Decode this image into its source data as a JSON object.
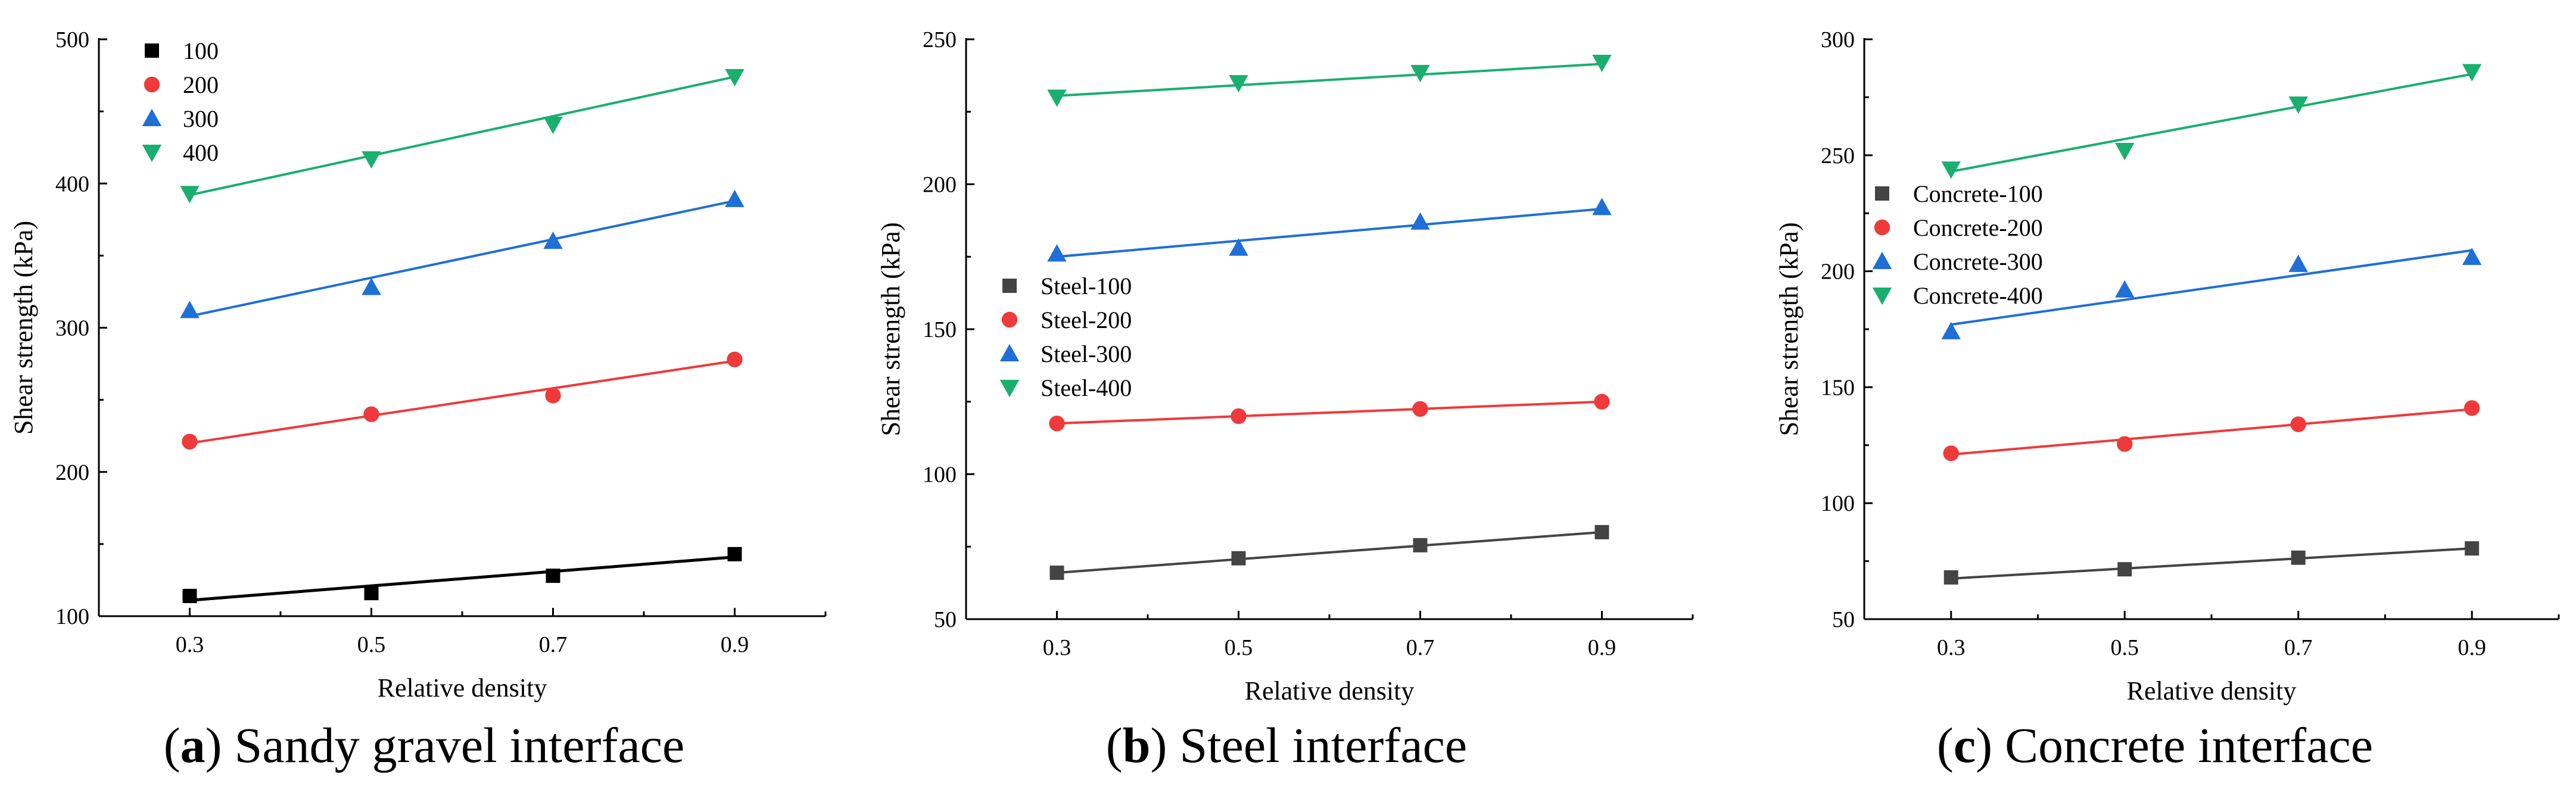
{
  "chart_data": [
    {
      "type": "scatter",
      "caption_letter": "a",
      "caption_text": "Sandy gravel interface",
      "xlabel": "Relative density",
      "ylabel": "Shear strength (kPa)",
      "x": [
        0.3,
        0.5,
        0.7,
        0.9
      ],
      "xticks": [
        "0.3",
        "0.5",
        "0.7",
        "0.9"
      ],
      "xlim": [
        0.2,
        1.0
      ],
      "ylim": [
        100,
        500
      ],
      "yticks": [
        "100",
        "200",
        "300",
        "400",
        "500"
      ],
      "legend_position": "top-left",
      "series": [
        {
          "name": "100",
          "color": "#000000",
          "marker": "square",
          "values": [
            114,
            116,
            128,
            143
          ],
          "fit": [
            111,
            141
          ]
        },
        {
          "name": "200",
          "color": "#ee3a3a",
          "marker": "circle",
          "values": [
            221,
            240,
            253,
            278
          ],
          "fit": [
            220,
            277
          ]
        },
        {
          "name": "300",
          "color": "#1f6fd6",
          "marker": "triangle-up",
          "values": [
            312,
            328,
            360,
            389
          ],
          "fit": [
            308,
            388
          ]
        },
        {
          "name": "400",
          "color": "#1aaf6e",
          "marker": "triangle-down",
          "values": [
            393,
            417,
            441,
            474
          ],
          "fit": [
            392,
            474
          ]
        }
      ]
    },
    {
      "type": "scatter",
      "caption_letter": "b",
      "caption_text": "Steel interface",
      "xlabel": "Relative density",
      "ylabel": "Shear strength (kPa)",
      "x": [
        0.3,
        0.5,
        0.7,
        0.9
      ],
      "xticks": [
        "0.3",
        "0.5",
        "0.7",
        "0.9"
      ],
      "xlim": [
        0.2,
        1.0
      ],
      "ylim": [
        50,
        250
      ],
      "yticks": [
        "50",
        "100",
        "150",
        "200",
        "250"
      ],
      "legend_position": "middle-left",
      "series": [
        {
          "name": "Steel-100",
          "color": "#444444",
          "marker": "square",
          "values": [
            66,
            71,
            75.5,
            80
          ],
          "fit": [
            66,
            80
          ]
        },
        {
          "name": "Steel-200",
          "color": "#ee3a3a",
          "marker": "circle",
          "values": [
            117.5,
            120,
            122.5,
            125
          ],
          "fit": [
            117.5,
            125
          ]
        },
        {
          "name": "Steel-300",
          "color": "#1f6fd6",
          "marker": "triangle-up",
          "values": [
            176,
            178,
            187,
            192
          ],
          "fit": [
            175,
            191.5
          ]
        },
        {
          "name": "Steel-400",
          "color": "#1aaf6e",
          "marker": "triangle-down",
          "values": [
            230,
            235,
            238.5,
            242
          ],
          "fit": [
            230.5,
            241.5
          ]
        }
      ]
    },
    {
      "type": "scatter",
      "caption_letter": "c",
      "caption_text": "Concrete interface",
      "xlabel": "Relative density",
      "ylabel": "Shear strength (kPa)",
      "x": [
        0.3,
        0.5,
        0.7,
        0.9
      ],
      "xticks": [
        "0.3",
        "0.5",
        "0.7",
        "0.9"
      ],
      "xlim": [
        0.2,
        1.0
      ],
      "ylim": [
        50,
        300
      ],
      "yticks": [
        "50",
        "100",
        "150",
        "200",
        "250",
        "300"
      ],
      "legend_position": "middle-left",
      "series": [
        {
          "name": "Concrete-100",
          "color": "#444444",
          "marker": "square",
          "values": [
            68,
            71.5,
            76.5,
            80.5
          ],
          "fit": [
            67.5,
            80.5
          ]
        },
        {
          "name": "Concrete-200",
          "color": "#ee3a3a",
          "marker": "circle",
          "values": [
            121.5,
            125.5,
            134,
            141
          ],
          "fit": [
            121,
            140.5
          ]
        },
        {
          "name": "Concrete-300",
          "color": "#1f6fd6",
          "marker": "triangle-up",
          "values": [
            174,
            192,
            203,
            206
          ],
          "fit": [
            177,
            209
          ]
        },
        {
          "name": "Concrete-400",
          "color": "#1aaf6e",
          "marker": "triangle-down",
          "values": [
            244,
            252,
            272,
            286
          ],
          "fit": [
            243,
            285
          ]
        }
      ]
    }
  ]
}
